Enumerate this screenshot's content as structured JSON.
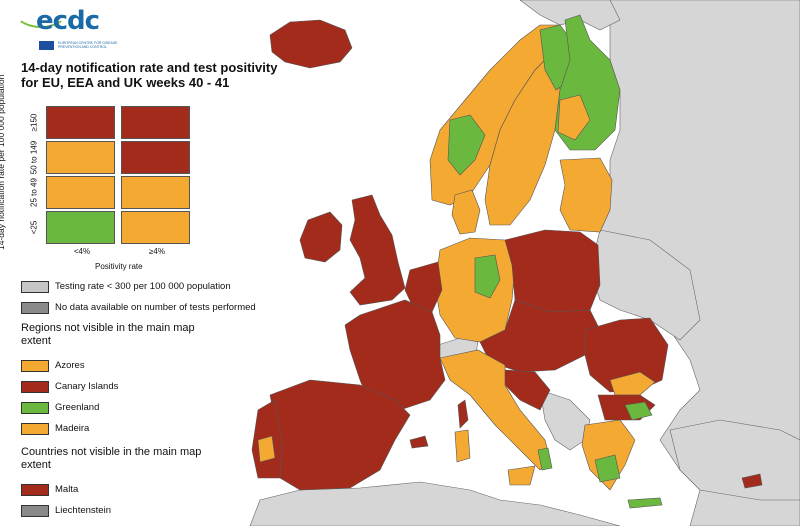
{
  "logo": {
    "text": "ecdc",
    "subtitle": "EUROPEAN CENTRE FOR DISEASE PREVENTION AND CONTROL"
  },
  "title": "14-day notification rate and test positivity for EU, EEA and UK weeks 40 - 41",
  "matrix": {
    "y_axis_label": "14-day notification rate per 100 000 population",
    "x_axis_label": "Positivity rate",
    "y_ticks": [
      "≥150",
      "50 to 149",
      "25 to 49",
      "<25"
    ],
    "x_ticks": [
      "<4%",
      "≥4%"
    ],
    "cells": [
      [
        "red",
        "red"
      ],
      [
        "orange",
        "red"
      ],
      [
        "orange",
        "orange"
      ],
      [
        "green",
        "orange"
      ]
    ]
  },
  "colors": {
    "red": "#a22b1c",
    "orange": "#f4a933",
    "green": "#6ab93e",
    "light_grey": "#c6c6c6",
    "dark_grey": "#8a8a8a",
    "non_eu": "#d6d6d6",
    "sea": "#ffffff",
    "border": "#555555"
  },
  "legend": {
    "testing_rate_low": "Testing rate < 300 per 100 000 population",
    "no_data": "No data available on number of tests performed",
    "regions_heading": "Regions not visible in the main map extent",
    "regions": [
      {
        "label": "Azores",
        "color": "orange"
      },
      {
        "label": "Canary Islands",
        "color": "red"
      },
      {
        "label": "Greenland",
        "color": "green"
      },
      {
        "label": "Madeira",
        "color": "orange"
      }
    ],
    "countries_heading": "Countries not visible in the main map extent",
    "countries": [
      {
        "label": "Malta",
        "color": "red"
      },
      {
        "label": "Liechtenstein",
        "color": "dark_grey"
      }
    ]
  }
}
